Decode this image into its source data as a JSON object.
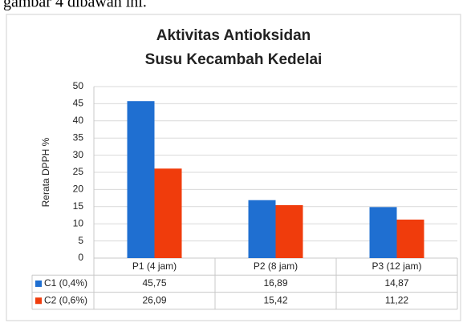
{
  "caption_above": "gambar 4 dibawah ini.",
  "chart_data": {
    "type": "bar",
    "title": [
      "Aktivitas Antioksidan",
      "Susu Kecambah Kedelai"
    ],
    "y_label": "Rerata DPPH %",
    "categories": [
      "P1 (4 jam)",
      "P2 (8 jam)",
      "P3 (12 jam)"
    ],
    "series": [
      {
        "name": "C1 (0,4%)",
        "color": "#1f6fd1",
        "values": [
          45.75,
          16.89,
          14.87
        ],
        "value_labels": [
          "45,75",
          "16,89",
          "14,87"
        ]
      },
      {
        "name": "C2 (0,6%)",
        "color": "#f03c0c",
        "values": [
          26.09,
          15.42,
          11.22
        ],
        "value_labels": [
          "26,09",
          "15,42",
          "11,22"
        ]
      }
    ],
    "ylim": [
      0,
      50
    ],
    "yticks": [
      0,
      5,
      10,
      15,
      20,
      25,
      30,
      35,
      40,
      45,
      50
    ],
    "grid": true
  }
}
